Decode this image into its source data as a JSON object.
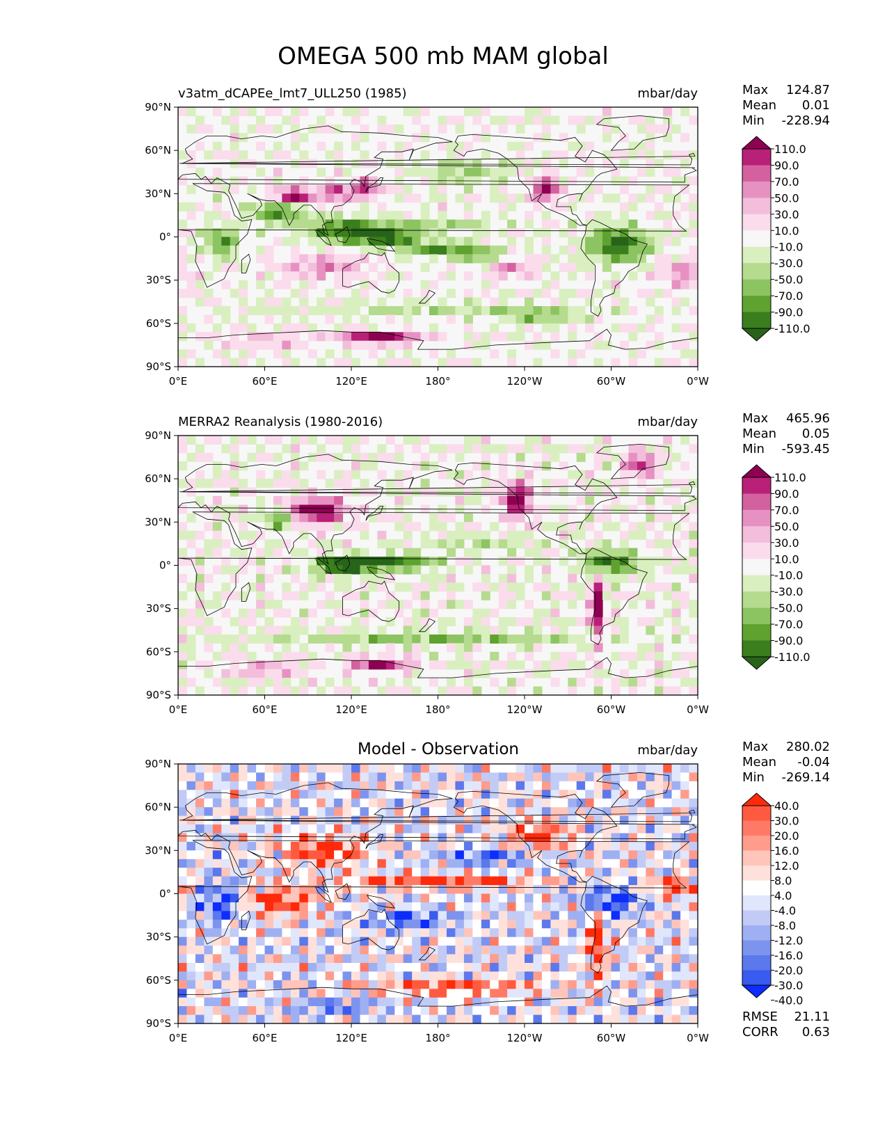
{
  "title": "OMEGA 500 mb MAM global",
  "x_ticks": [
    "0°E",
    "60°E",
    "120°E",
    "180°",
    "120°W",
    "60°W",
    "0°W"
  ],
  "y_ticks": [
    "90°N",
    "60°N",
    "30°N",
    "0°",
    "30°S",
    "60°S",
    "90°S"
  ],
  "colors": {
    "ocean_bg": "#f7f7f7",
    "coast": "#000000",
    "pinkgreen": [
      "#276419",
      "#3a7e1e",
      "#5fa230",
      "#8cc461",
      "#b5db8e",
      "#d9efc0",
      "#f7f7f7",
      "#fbdcec",
      "#f3bedb",
      "#e791c3",
      "#d4619f",
      "#b92077",
      "#8e0152"
    ],
    "bluered": [
      "#0d2dfc",
      "#3a5bf0",
      "#5b78ec",
      "#7d94ee",
      "#9fb0f2",
      "#c1cbf5",
      "#e0e6fb",
      "#ffffff",
      "#ffe1dc",
      "#ffc4ba",
      "#ff9c8c",
      "#ff7a66",
      "#ff5a40",
      "#ff2a0a"
    ]
  },
  "chart_data": [
    {
      "type": "heatmap",
      "name": "model",
      "title": "v3atm_dCAPEe_lmt7_ULL250 (1985)",
      "units": "mbar/day",
      "xlim": [
        0,
        360
      ],
      "ylim": [
        -90,
        90
      ],
      "stats": {
        "max_label": "Max",
        "max": "124.87",
        "mean_label": "Mean",
        "mean": "0.01",
        "min_label": "Min",
        "min": "-228.94"
      },
      "colorbar": {
        "cmap": "pinkgreen",
        "levels": [
          "110.0",
          "90.0",
          "70.0",
          "50.0",
          "30.0",
          "10.0",
          "-10.0",
          "-30.0",
          "-50.0",
          "-70.0",
          "-90.0",
          "-110.0"
        ]
      }
    },
    {
      "type": "heatmap",
      "name": "obs",
      "title": "MERRA2 Reanalysis (1980-2016)",
      "units": "mbar/day",
      "xlim": [
        0,
        360
      ],
      "ylim": [
        -90,
        90
      ],
      "stats": {
        "max_label": "Max",
        "max": "465.96",
        "mean_label": "Mean",
        "mean": "0.05",
        "min_label": "Min",
        "min": "-593.45"
      },
      "colorbar": {
        "cmap": "pinkgreen",
        "levels": [
          "110.0",
          "90.0",
          "70.0",
          "50.0",
          "30.0",
          "10.0",
          "-10.0",
          "-30.0",
          "-50.0",
          "-70.0",
          "-90.0",
          "-110.0"
        ]
      }
    },
    {
      "type": "heatmap",
      "name": "diff",
      "title": "Model - Observation",
      "units": "mbar/day",
      "xlim": [
        0,
        360
      ],
      "ylim": [
        -90,
        90
      ],
      "stats": {
        "max_label": "Max",
        "max": "280.02",
        "mean_label": "Mean",
        "mean": "-0.04",
        "min_label": "Min",
        "min": "-269.14"
      },
      "colorbar": {
        "cmap": "bluered",
        "levels": [
          "40.0",
          "30.0",
          "20.0",
          "16.0",
          "12.0",
          "8.0",
          "4.0",
          "-4.0",
          "-8.0",
          "-12.0",
          "-16.0",
          "-20.0",
          "-30.0",
          "-40.0"
        ]
      },
      "metrics": {
        "rmse_label": "RMSE",
        "rmse": "21.11",
        "corr_label": "CORR",
        "corr": "0.63"
      }
    }
  ]
}
